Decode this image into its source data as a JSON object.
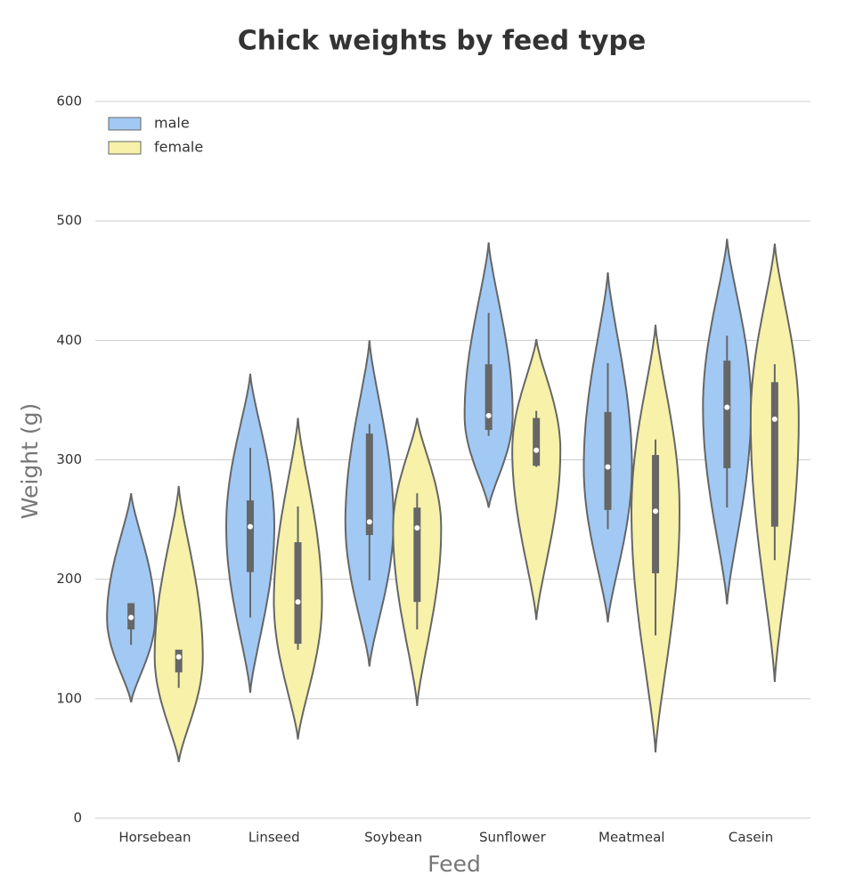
{
  "chart_data": {
    "type": "violin",
    "title": "Chick weights by feed type",
    "x_label": "Feed",
    "y_label": "Weight (g)",
    "categories": [
      "Horsebean",
      "Linseed",
      "Soybean",
      "Sunflower",
      "Meatmeal",
      "Casein"
    ],
    "ylim": [
      0,
      600
    ],
    "yticks": [
      0,
      100,
      200,
      300,
      400,
      500,
      600
    ],
    "grid": true,
    "legend": "upper left",
    "series": [
      {
        "name": "male",
        "color": "#a1c9f4",
        "violin_low": [
          97,
          105,
          127,
          260,
          164,
          179
        ],
        "whisker_low": [
          145,
          168,
          199,
          320,
          242,
          260
        ],
        "q1": [
          158,
          206,
          237,
          325,
          258,
          293
        ],
        "median": [
          168,
          244,
          248,
          337,
          294,
          344
        ],
        "q3": [
          180,
          266,
          322,
          380,
          340,
          383
        ],
        "whisker_high": [
          180,
          310,
          330,
          423,
          381,
          404
        ],
        "violin_high": [
          272,
          372,
          400,
          482,
          457,
          485
        ]
      },
      {
        "name": "female",
        "color": "#f7f1a9",
        "violin_low": [
          47,
          66,
          94,
          166,
          55,
          114
        ],
        "whisker_low": [
          109,
          141,
          158,
          294,
          153,
          216
        ],
        "q1": [
          122,
          146,
          181,
          295,
          205,
          244
        ],
        "median": [
          135,
          181,
          243,
          308,
          257,
          334
        ],
        "q3": [
          141,
          231,
          260,
          335,
          304,
          365
        ],
        "whisker_high": [
          141,
          261,
          272,
          341,
          317,
          380
        ],
        "violin_high": [
          278,
          335,
          335,
          401,
          413,
          481
        ]
      }
    ]
  }
}
